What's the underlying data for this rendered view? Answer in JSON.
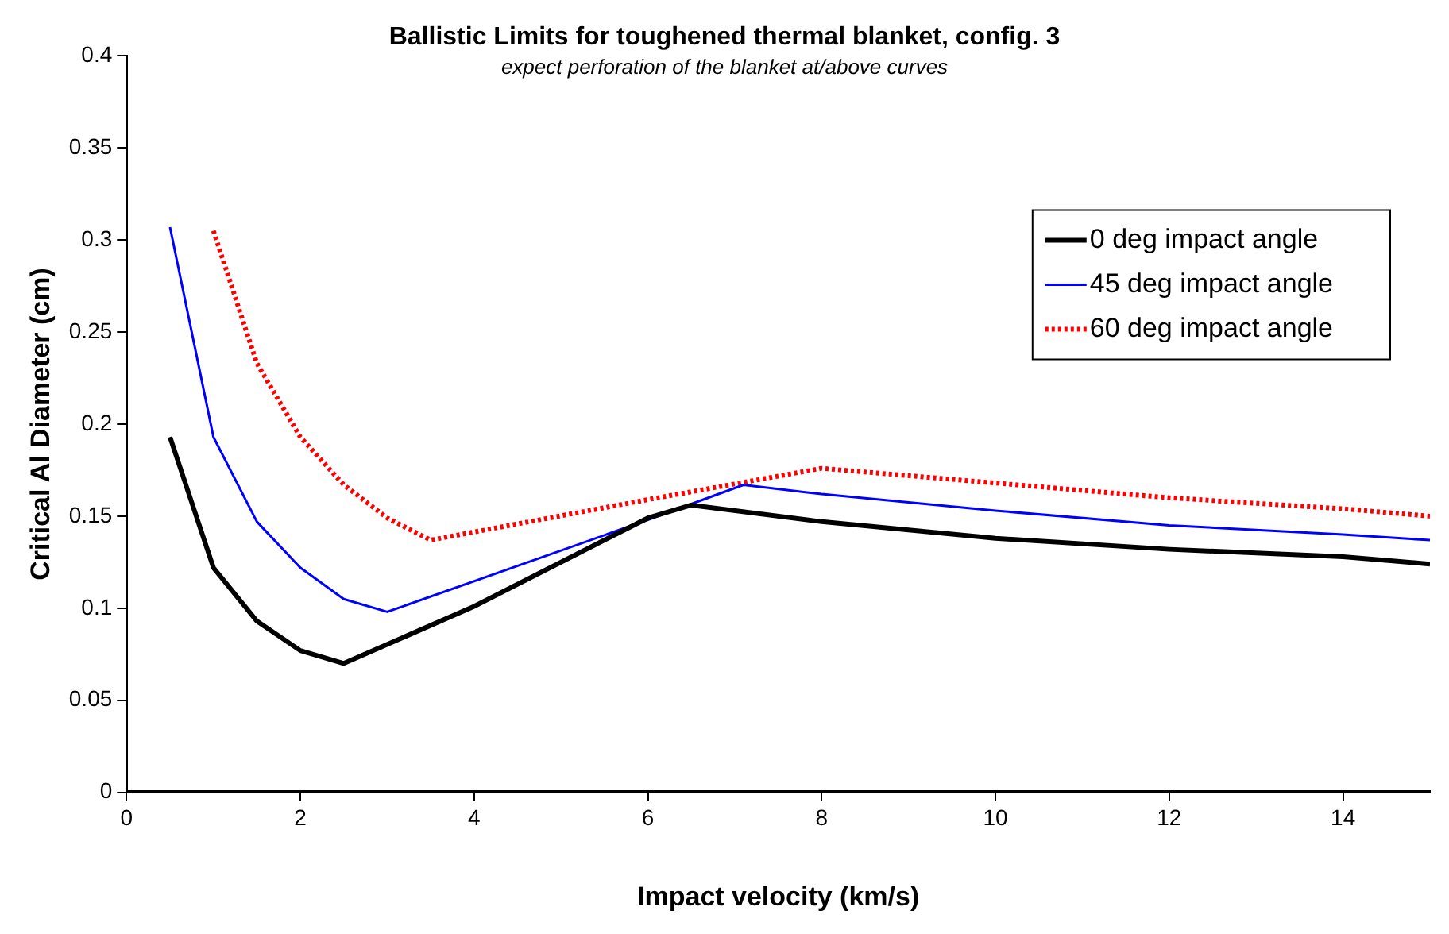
{
  "chart_data": {
    "type": "line",
    "title": "Ballistic Limits for toughened thermal blanket, config. 3",
    "subtitle": "expect perforation of the blanket at/above curves",
    "xlabel": "Impact velocity (km/s)",
    "ylabel": "Critical Al Diameter (cm)",
    "xlim": [
      0,
      15
    ],
    "xticks": [
      0,
      2,
      4,
      6,
      8,
      10,
      12,
      14
    ],
    "ylim": [
      0,
      0.4
    ],
    "yticks": [
      0,
      0.05,
      0.1,
      0.15,
      0.2,
      0.25,
      0.3,
      0.35,
      0.4
    ],
    "grid": false,
    "legend": "top right",
    "marker": "none",
    "series": [
      {
        "name": "0 deg impact angle",
        "color": "#000000",
        "line_style": "solid",
        "x": [
          0.5,
          1,
          1.5,
          2,
          2.5,
          4,
          6,
          6.5,
          8,
          10,
          12,
          14,
          15
        ],
        "values": [
          0.193,
          0.122,
          0.093,
          0.077,
          0.07,
          0.101,
          0.149,
          0.156,
          0.147,
          0.138,
          0.132,
          0.128,
          0.124
        ]
      },
      {
        "name": "45 deg impact angle",
        "color": "#0000ff",
        "line_style": "solid",
        "x": [
          0.5,
          1,
          1.5,
          2,
          2.5,
          3,
          6,
          7.1,
          8,
          10,
          12,
          14,
          15
        ],
        "values": [
          0.307,
          0.193,
          0.147,
          0.122,
          0.105,
          0.098,
          0.148,
          0.167,
          0.162,
          0.153,
          0.145,
          0.14,
          0.137
        ]
      },
      {
        "name": "60 deg impact angle",
        "color": "#ff0000",
        "line_style": "dotted",
        "x": [
          1,
          1.5,
          2,
          2.5,
          3,
          3.5,
          6,
          8,
          10,
          12,
          14,
          15
        ],
        "values": [
          0.305,
          0.233,
          0.193,
          0.167,
          0.149,
          0.137,
          0.159,
          0.176,
          0.168,
          0.16,
          0.154,
          0.15
        ]
      }
    ]
  }
}
